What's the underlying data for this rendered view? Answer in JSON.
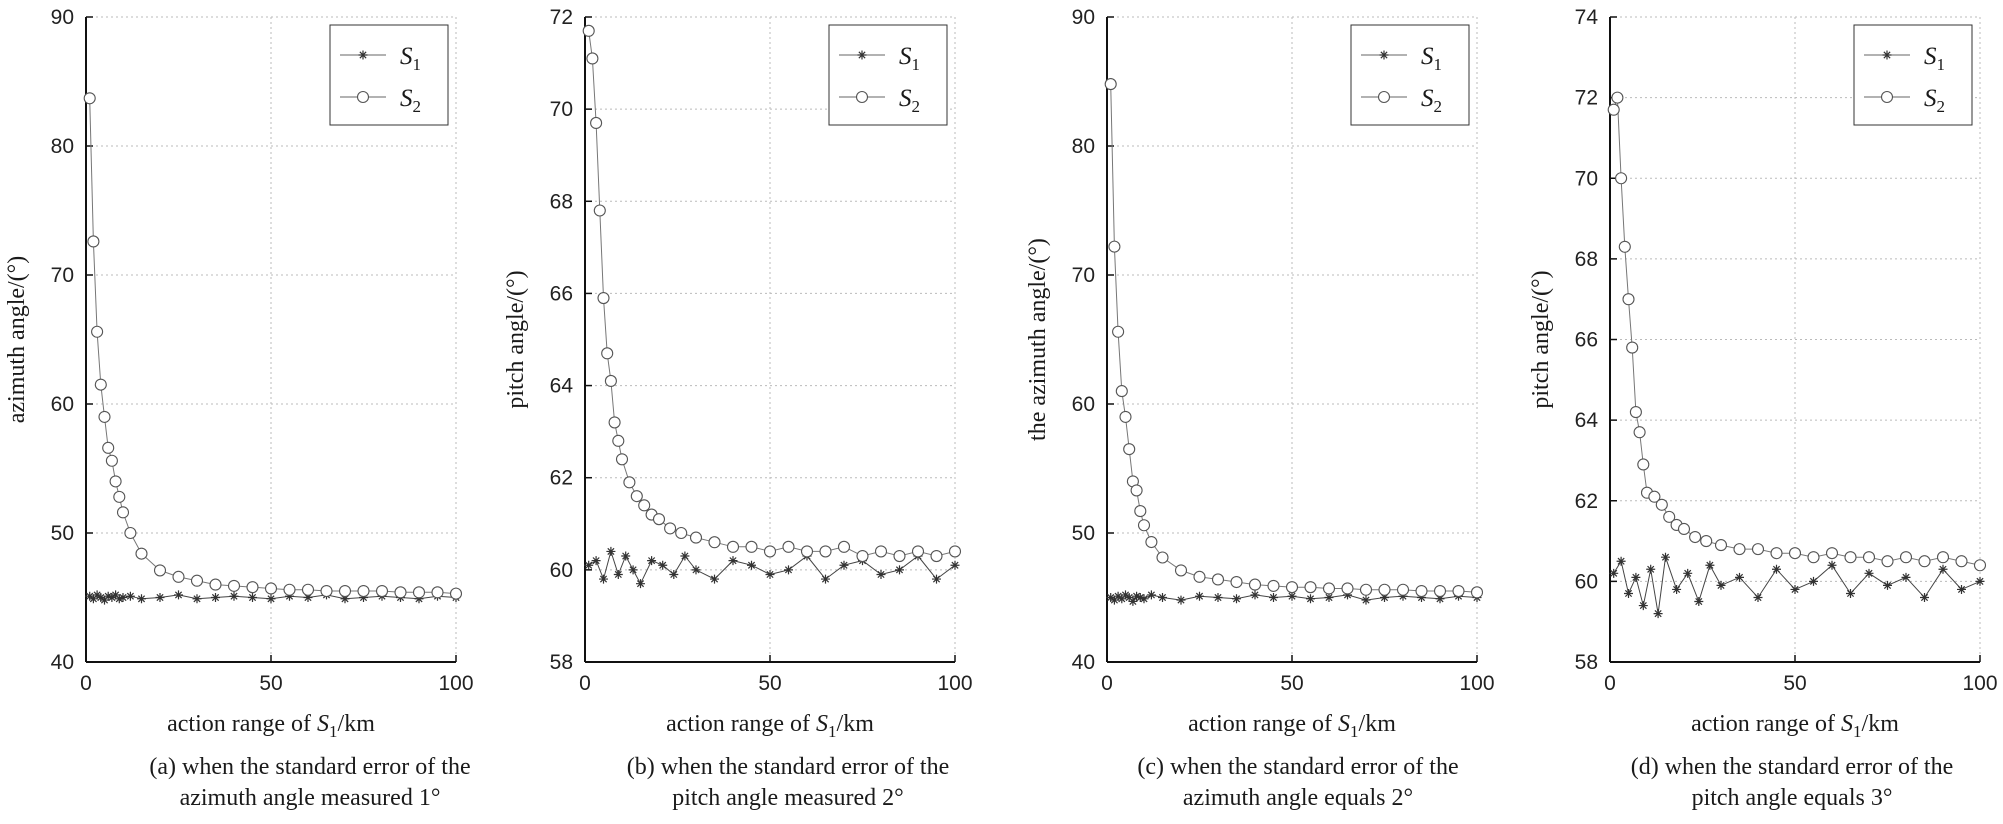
{
  "chart_data": [
    {
      "type": "line",
      "ylabel": "azimuth angle/(°)",
      "xlabel": "action range of S1/km",
      "xlabel_parts": {
        "pre": "action range of ",
        "sym": "S",
        "sub": "1",
        "post": "/km"
      },
      "xlim": [
        0,
        100
      ],
      "ylim": [
        40,
        90
      ],
      "xticks": [
        0,
        50,
        100
      ],
      "yticks": [
        40,
        50,
        60,
        70,
        80,
        90
      ],
      "grid": true,
      "legend_position": "top-right",
      "caption": [
        "(a) when the standard error of the",
        "azimuth angle measured 1°"
      ],
      "series": [
        {
          "name": "S1",
          "name_sym": "S",
          "name_sub": "1",
          "marker": "star",
          "x": [
            1,
            2,
            3,
            4,
            5,
            6,
            7,
            8,
            9,
            10,
            12,
            15,
            20,
            25,
            30,
            35,
            40,
            45,
            50,
            55,
            60,
            65,
            70,
            75,
            80,
            85,
            90,
            95,
            100
          ],
          "y": [
            45.1,
            44.9,
            45.2,
            45.0,
            44.8,
            45.1,
            45.0,
            45.2,
            44.9,
            45.0,
            45.1,
            44.9,
            45.0,
            45.2,
            44.9,
            45.0,
            45.1,
            45.0,
            44.9,
            45.1,
            45.0,
            45.2,
            44.9,
            45.0,
            45.1,
            45.0,
            44.9,
            45.1,
            45.0
          ]
        },
        {
          "name": "S2",
          "name_sym": "S",
          "name_sub": "2",
          "marker": "circle",
          "x": [
            1,
            2,
            3,
            4,
            5,
            6,
            7,
            8,
            9,
            10,
            12,
            15,
            20,
            25,
            30,
            35,
            40,
            45,
            50,
            55,
            60,
            65,
            70,
            75,
            80,
            85,
            90,
            95,
            100
          ],
          "y": [
            83.7,
            72.6,
            65.6,
            61.5,
            59.0,
            56.6,
            55.6,
            54.0,
            52.8,
            51.6,
            50.0,
            48.4,
            47.1,
            46.6,
            46.3,
            46.0,
            45.9,
            45.8,
            45.7,
            45.6,
            45.6,
            45.5,
            45.5,
            45.5,
            45.5,
            45.4,
            45.4,
            45.4,
            45.3
          ]
        }
      ]
    },
    {
      "type": "line",
      "ylabel": "pitch angle/(°)",
      "xlabel": "action range of S1/km",
      "xlabel_parts": {
        "pre": "action range of ",
        "sym": "S",
        "sub": "1",
        "post": "/km"
      },
      "xlim": [
        0,
        100
      ],
      "ylim": [
        58,
        72
      ],
      "xticks": [
        0,
        50,
        100
      ],
      "yticks": [
        58,
        60,
        62,
        64,
        66,
        68,
        70,
        72
      ],
      "grid": true,
      "legend_position": "top-right",
      "caption": [
        "(b) when the standard error of the",
        "pitch angle measured 2°"
      ],
      "series": [
        {
          "name": "S1",
          "name_sym": "S",
          "name_sub": "1",
          "marker": "star",
          "x": [
            1,
            3,
            5,
            7,
            9,
            11,
            13,
            15,
            18,
            21,
            24,
            27,
            30,
            35,
            40,
            45,
            50,
            55,
            60,
            65,
            70,
            75,
            80,
            85,
            90,
            95,
            100
          ],
          "y": [
            60.1,
            60.2,
            59.8,
            60.4,
            59.9,
            60.3,
            60.0,
            59.7,
            60.2,
            60.1,
            59.9,
            60.3,
            60.0,
            59.8,
            60.2,
            60.1,
            59.9,
            60.0,
            60.3,
            59.8,
            60.1,
            60.2,
            59.9,
            60.0,
            60.3,
            59.8,
            60.1
          ]
        },
        {
          "name": "S2",
          "name_sym": "S",
          "name_sub": "2",
          "marker": "circle",
          "x": [
            1,
            2,
            3,
            4,
            5,
            6,
            7,
            8,
            9,
            10,
            12,
            14,
            16,
            18,
            20,
            23,
            26,
            30,
            35,
            40,
            45,
            50,
            55,
            60,
            65,
            70,
            75,
            80,
            85,
            90,
            95,
            100
          ],
          "y": [
            71.7,
            71.1,
            69.7,
            67.8,
            65.9,
            64.7,
            64.1,
            63.2,
            62.8,
            62.4,
            61.9,
            61.6,
            61.4,
            61.2,
            61.1,
            60.9,
            60.8,
            60.7,
            60.6,
            60.5,
            60.5,
            60.4,
            60.5,
            60.4,
            60.4,
            60.5,
            60.3,
            60.4,
            60.3,
            60.4,
            60.3,
            60.4
          ]
        }
      ]
    },
    {
      "type": "line",
      "ylabel": "the azimuth angle/(°)",
      "xlabel": "action range of S1/km",
      "xlabel_parts": {
        "pre": "action range of ",
        "sym": "S",
        "sub": "1",
        "post": "/km"
      },
      "xlim": [
        0,
        100
      ],
      "ylim": [
        40,
        90
      ],
      "xticks": [
        0,
        50,
        100
      ],
      "yticks": [
        40,
        50,
        60,
        70,
        80,
        90
      ],
      "grid": true,
      "legend_position": "top-right",
      "caption": [
        "(c) when the standard error of the",
        "azimuth angle equals 2°"
      ],
      "series": [
        {
          "name": "S1",
          "name_sym": "S",
          "name_sub": "1",
          "marker": "star",
          "x": [
            1,
            2,
            3,
            4,
            5,
            6,
            7,
            8,
            9,
            10,
            12,
            15,
            20,
            25,
            30,
            35,
            40,
            45,
            50,
            55,
            60,
            65,
            70,
            75,
            80,
            85,
            90,
            95,
            100
          ],
          "y": [
            45.0,
            44.8,
            45.1,
            44.9,
            45.2,
            45.0,
            44.7,
            45.1,
            45.0,
            44.9,
            45.2,
            45.0,
            44.8,
            45.1,
            45.0,
            44.9,
            45.2,
            45.0,
            45.1,
            44.9,
            45.0,
            45.2,
            44.8,
            45.0,
            45.1,
            45.0,
            44.9,
            45.1,
            45.0
          ]
        },
        {
          "name": "S2",
          "name_sym": "S",
          "name_sub": "2",
          "marker": "circle",
          "x": [
            1,
            2,
            3,
            4,
            5,
            6,
            7,
            8,
            9,
            10,
            12,
            15,
            20,
            25,
            30,
            35,
            40,
            45,
            50,
            55,
            60,
            65,
            70,
            75,
            80,
            85,
            90,
            95,
            100
          ],
          "y": [
            84.8,
            72.2,
            65.6,
            61.0,
            59.0,
            56.5,
            54.0,
            53.3,
            51.7,
            50.6,
            49.3,
            48.1,
            47.1,
            46.6,
            46.4,
            46.2,
            46.0,
            45.9,
            45.8,
            45.8,
            45.7,
            45.7,
            45.6,
            45.6,
            45.6,
            45.5,
            45.5,
            45.5,
            45.4
          ]
        }
      ]
    },
    {
      "type": "line",
      "ylabel": "pitch angle/(°)",
      "xlabel": "action range of S1/km",
      "xlabel_parts": {
        "pre": "action range of ",
        "sym": "S",
        "sub": "1",
        "post": "/km"
      },
      "xlim": [
        0,
        100
      ],
      "ylim": [
        58,
        74
      ],
      "xticks": [
        0,
        50,
        100
      ],
      "yticks": [
        58,
        60,
        62,
        64,
        66,
        68,
        70,
        72,
        74
      ],
      "grid": true,
      "legend_position": "top-right",
      "caption": [
        "(d) when the standard error of the",
        "pitch angle equals 3°"
      ],
      "series": [
        {
          "name": "S1",
          "name_sym": "S",
          "name_sub": "1",
          "marker": "star",
          "x": [
            1,
            3,
            5,
            7,
            9,
            11,
            13,
            15,
            18,
            21,
            24,
            27,
            30,
            35,
            40,
            45,
            50,
            55,
            60,
            65,
            70,
            75,
            80,
            85,
            90,
            95,
            100
          ],
          "y": [
            60.2,
            60.5,
            59.7,
            60.1,
            59.4,
            60.3,
            59.2,
            60.6,
            59.8,
            60.2,
            59.5,
            60.4,
            59.9,
            60.1,
            59.6,
            60.3,
            59.8,
            60.0,
            60.4,
            59.7,
            60.2,
            59.9,
            60.1,
            59.6,
            60.3,
            59.8,
            60.0
          ]
        },
        {
          "name": "S2",
          "name_sym": "S",
          "name_sub": "2",
          "marker": "circle",
          "x": [
            1,
            2,
            3,
            4,
            5,
            6,
            7,
            8,
            9,
            10,
            12,
            14,
            16,
            18,
            20,
            23,
            26,
            30,
            35,
            40,
            45,
            50,
            55,
            60,
            65,
            70,
            75,
            80,
            85,
            90,
            95,
            100
          ],
          "y": [
            71.7,
            72.0,
            70.0,
            68.3,
            67.0,
            65.8,
            64.2,
            63.7,
            62.9,
            62.2,
            62.1,
            61.9,
            61.6,
            61.4,
            61.3,
            61.1,
            61.0,
            60.9,
            60.8,
            60.8,
            60.7,
            60.7,
            60.6,
            60.7,
            60.6,
            60.6,
            60.5,
            60.6,
            60.5,
            60.6,
            60.5,
            60.4
          ]
        }
      ]
    }
  ]
}
